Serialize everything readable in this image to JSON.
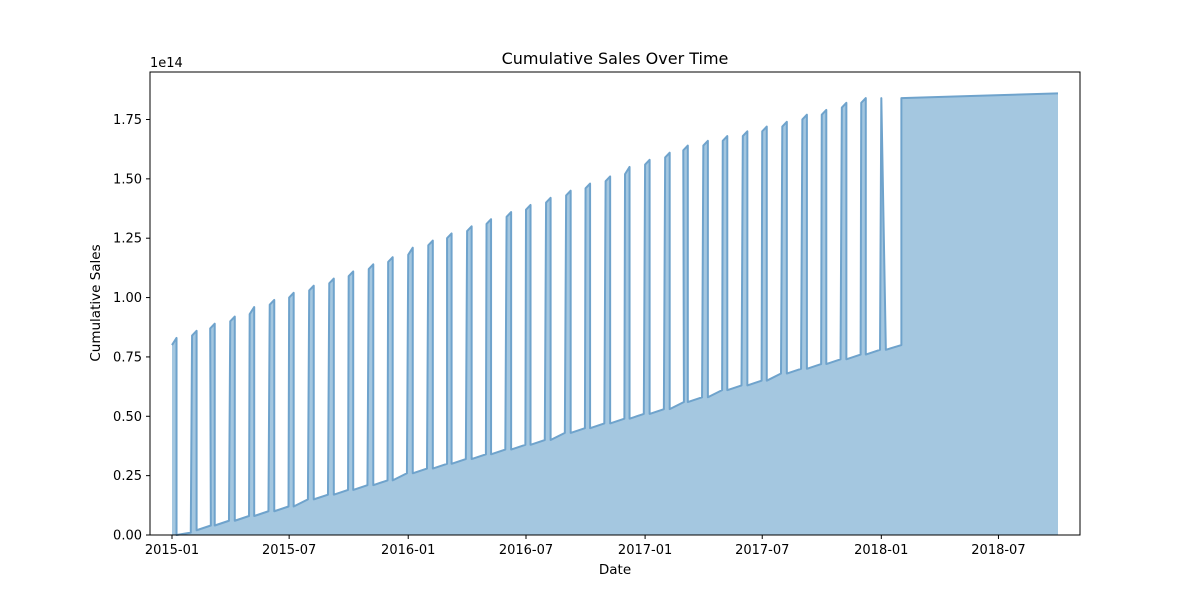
{
  "chart_data": {
    "type": "area",
    "title": "Cumulative Sales Over Time",
    "xlabel": "Date",
    "ylabel": "Cumulative Sales",
    "y_offset_label": "1e14",
    "ylim": [
      0,
      1.95
    ],
    "xlim": [
      "2014-11-28",
      "2018-11-04"
    ],
    "grid": false,
    "fill_color": "#a4c7e0",
    "line_color": "#6fa3cc",
    "x_ticks": [
      {
        "date": "2015-01-01",
        "label": "2015-01"
      },
      {
        "date": "2015-07-01",
        "label": "2015-07"
      },
      {
        "date": "2016-01-01",
        "label": "2016-01"
      },
      {
        "date": "2016-07-01",
        "label": "2016-07"
      },
      {
        "date": "2017-01-01",
        "label": "2017-01"
      },
      {
        "date": "2017-07-01",
        "label": "2017-07"
      },
      {
        "date": "2018-01-01",
        "label": "2018-01"
      },
      {
        "date": "2018-07-01",
        "label": "2018-07"
      }
    ],
    "y_ticks": [
      {
        "value": 0,
        "label": "0.00"
      },
      {
        "value": 0.25,
        "label": "0.25"
      },
      {
        "value": 0.5,
        "label": "0.50"
      },
      {
        "value": 0.75,
        "label": "0.75"
      },
      {
        "value": 1.0,
        "label": "1.00"
      },
      {
        "value": 1.25,
        "label": "1.25"
      },
      {
        "value": 1.5,
        "label": "1.50"
      },
      {
        "value": 1.75,
        "label": "1.75"
      }
    ],
    "series": [
      {
        "name": "Cumulative Sales (x1e14)",
        "start_date": "2015-01-01",
        "monthly": [
          [
            0.8,
            0.83,
            0.0,
            0.01
          ],
          [
            0.84,
            0.86,
            0.02,
            0.04
          ],
          [
            0.87,
            0.89,
            0.04,
            0.06
          ],
          [
            0.9,
            0.92,
            0.06,
            0.08
          ],
          [
            0.93,
            0.96,
            0.08,
            0.1
          ],
          [
            0.97,
            0.99,
            0.1,
            0.12
          ],
          [
            1.0,
            1.02,
            0.12,
            0.15
          ],
          [
            1.03,
            1.05,
            0.15,
            0.17
          ],
          [
            1.06,
            1.08,
            0.17,
            0.19
          ],
          [
            1.09,
            1.11,
            0.19,
            0.21
          ],
          [
            1.12,
            1.14,
            0.21,
            0.23
          ],
          [
            1.15,
            1.17,
            0.23,
            0.26
          ],
          [
            1.18,
            1.21,
            0.26,
            0.28
          ],
          [
            1.22,
            1.24,
            0.28,
            0.3
          ],
          [
            1.25,
            1.27,
            0.3,
            0.32
          ],
          [
            1.28,
            1.3,
            0.32,
            0.34
          ],
          [
            1.31,
            1.33,
            0.34,
            0.36
          ],
          [
            1.34,
            1.36,
            0.36,
            0.38
          ],
          [
            1.37,
            1.39,
            0.38,
            0.4
          ],
          [
            1.4,
            1.42,
            0.4,
            0.43
          ],
          [
            1.43,
            1.45,
            0.43,
            0.45
          ],
          [
            1.46,
            1.48,
            0.45,
            0.47
          ],
          [
            1.49,
            1.51,
            0.47,
            0.49
          ],
          [
            1.52,
            1.55,
            0.49,
            0.51
          ],
          [
            1.56,
            1.58,
            0.51,
            0.53
          ],
          [
            1.59,
            1.61,
            0.53,
            0.56
          ],
          [
            1.62,
            1.64,
            0.56,
            0.58
          ],
          [
            1.64,
            1.66,
            0.58,
            0.61
          ],
          [
            1.66,
            1.68,
            0.61,
            0.63
          ],
          [
            1.68,
            1.7,
            0.63,
            0.65
          ],
          [
            1.7,
            1.72,
            0.65,
            0.68
          ],
          [
            1.72,
            1.74,
            0.68,
            0.7
          ],
          [
            1.75,
            1.77,
            0.7,
            0.72
          ],
          [
            1.77,
            1.79,
            0.72,
            0.74
          ],
          [
            1.8,
            1.82,
            0.74,
            0.76
          ],
          [
            1.82,
            1.84,
            0.76,
            0.78
          ]
        ],
        "tail": [
          {
            "date": "2018-01-01",
            "value": 1.84
          },
          {
            "date": "2018-01-08",
            "value": 0.78
          },
          {
            "date": "2018-02-01",
            "value": 0.8
          },
          {
            "date": "2018-02-01",
            "value": 1.84
          },
          {
            "date": "2018-06-01",
            "value": 1.85
          },
          {
            "date": "2018-10-01",
            "value": 1.86
          }
        ]
      }
    ]
  }
}
